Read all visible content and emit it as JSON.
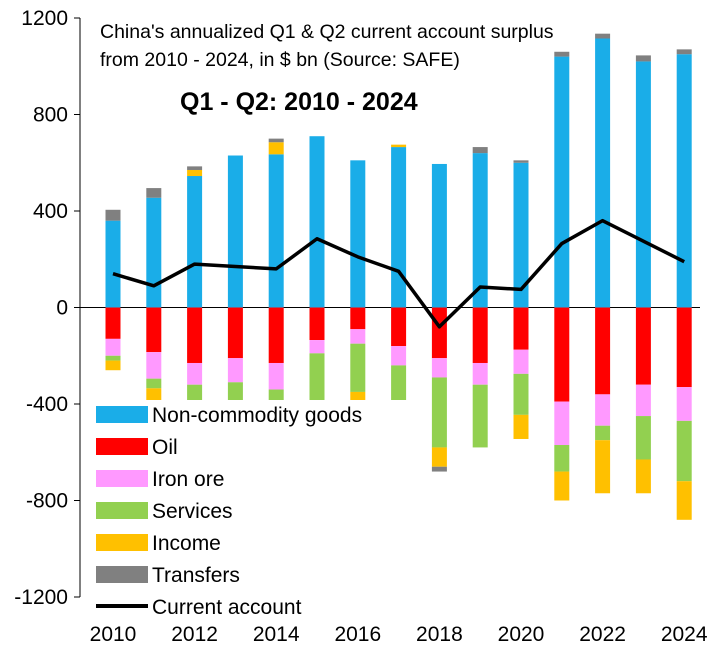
{
  "chart_data": {
    "type": "bar",
    "stacked": true,
    "title_lines": [
      "China's annualized Q1 & Q2 current account surplus",
      "from 2010 - 2024, in $ bn (Source: SAFE)"
    ],
    "subtitle": "Q1 - Q2: 2010 - 2024",
    "years": [
      2010,
      2011,
      2012,
      2013,
      2014,
      2015,
      2016,
      2017,
      2018,
      2019,
      2020,
      2021,
      2022,
      2023,
      2024
    ],
    "x_tick_labels": [
      "2010",
      "2012",
      "2014",
      "2016",
      "2018",
      "2020",
      "2022",
      "2024"
    ],
    "y_tick_labels": [
      "1200",
      "800",
      "400",
      "0",
      "-400",
      "-800",
      "-1200"
    ],
    "y_ticks": [
      1200,
      800,
      400,
      0,
      -400,
      -800,
      -1200
    ],
    "ylim": [
      -1200,
      1200
    ],
    "legend_placement": "bottom-left",
    "series": [
      {
        "name": "Non-commodity goods",
        "color": "#1AADE8",
        "kind": "bar",
        "values": [
          360,
          455,
          545,
          630,
          635,
          710,
          610,
          665,
          595,
          640,
          600,
          1040,
          1115,
          1020,
          1050
        ]
      },
      {
        "name": "Oil",
        "color": "#FF0000",
        "kind": "bar",
        "values": [
          -130,
          -185,
          -230,
          -210,
          -230,
          -135,
          -90,
          -160,
          -210,
          -230,
          -175,
          -390,
          -360,
          -320,
          -330
        ]
      },
      {
        "name": "Iron ore",
        "color": "#FF99FF",
        "kind": "bar",
        "values": [
          -70,
          -110,
          -90,
          -100,
          -110,
          -55,
          -60,
          -80,
          -80,
          -90,
          -100,
          -180,
          -130,
          -130,
          -140
        ]
      },
      {
        "name": "Services",
        "color": "#92D050",
        "kind": "bar",
        "values": [
          -20,
          -40,
          -90,
          -130,
          -200,
          -200,
          -200,
          -250,
          -290,
          -260,
          -170,
          -110,
          -60,
          -180,
          -250
        ]
      },
      {
        "name": "Income",
        "color": "#FFC000",
        "kind": "bar",
        "values": [
          -40,
          -80,
          25,
          -40,
          50,
          -10,
          -40,
          10,
          -80,
          0,
          -100,
          -120,
          -220,
          -140,
          -160
        ]
      },
      {
        "name": "Transfers",
        "color": "#808080",
        "kind": "bar",
        "values": [
          45,
          40,
          15,
          0,
          15,
          0,
          -20,
          -25,
          -20,
          25,
          10,
          20,
          20,
          25,
          20
        ]
      },
      {
        "name": "Current account",
        "color": "#000000",
        "kind": "line",
        "values": [
          140,
          90,
          180,
          170,
          160,
          285,
          210,
          150,
          -80,
          85,
          75,
          265,
          360,
          275,
          190
        ]
      }
    ]
  }
}
